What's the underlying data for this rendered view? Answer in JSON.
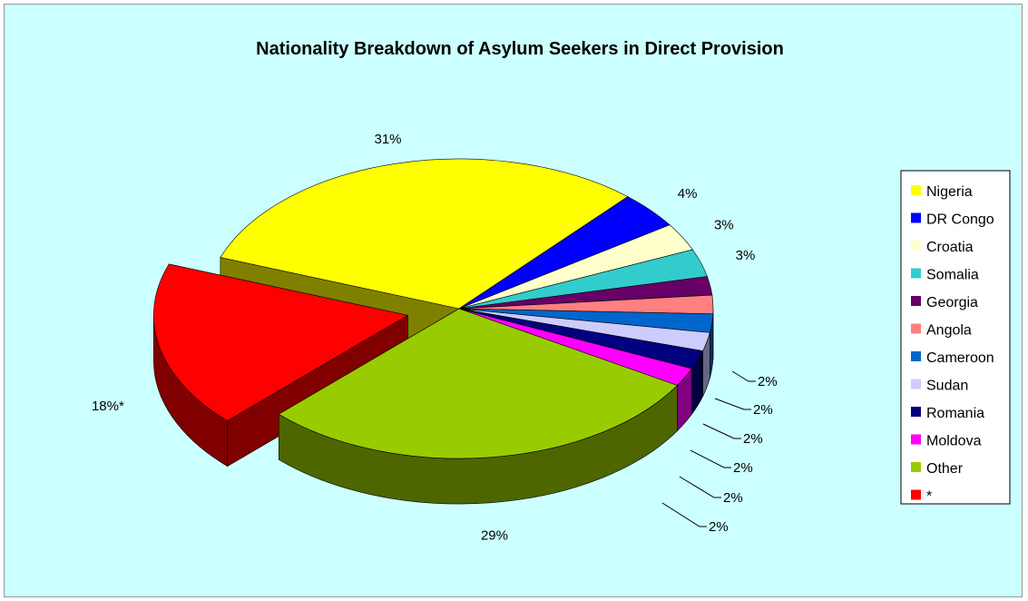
{
  "chart_data": {
    "type": "pie",
    "title": "Nationality Breakdown of Asylum Seekers in Direct Provision",
    "legend_position": "right",
    "categories": [
      "Nigeria",
      "DR Congo",
      "Croatia",
      "Somalia",
      "Georgia",
      "Angola",
      "Cameroon",
      "Sudan",
      "Romania",
      "Moldova",
      "Other",
      "*"
    ],
    "values": [
      31,
      4,
      3,
      3,
      2,
      2,
      2,
      2,
      2,
      2,
      29,
      18
    ],
    "data_labels": [
      "31%",
      "4%",
      "3%",
      "3%",
      "2%",
      "2%",
      "2%",
      "2%",
      "2%",
      "2%",
      "29%",
      "18%*"
    ],
    "colors": [
      "#ffff00",
      "#0000ff",
      "#ffffcc",
      "#33cccc",
      "#660066",
      "#ff8080",
      "#0066cc",
      "#ccccff",
      "#000080",
      "#ff00ff",
      "#99cc00",
      "#ff0000"
    ],
    "exploded": [
      "*"
    ]
  }
}
